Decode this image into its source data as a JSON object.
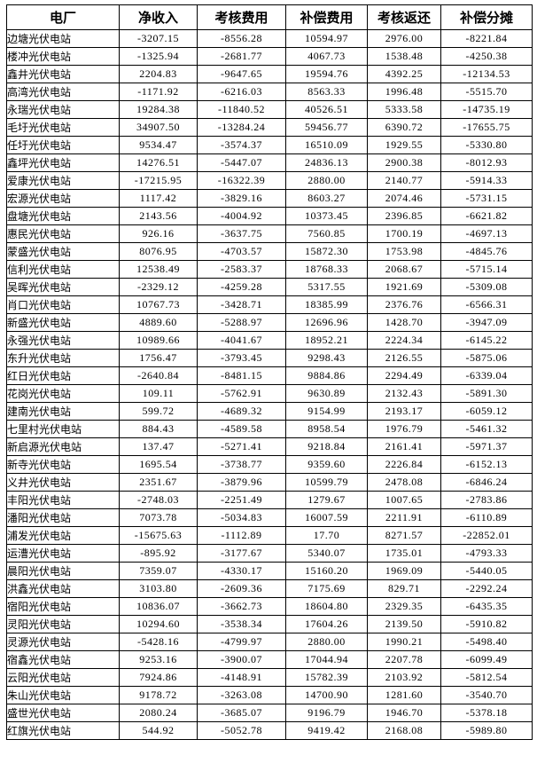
{
  "table": {
    "columns": [
      "电厂",
      "净收入",
      "考核费用",
      "补偿费用",
      "考核返还",
      "补偿分摊"
    ],
    "rows": [
      [
        "边塘光伏电站",
        "-3207.15",
        "-8556.28",
        "10594.97",
        "2976.00",
        "-8221.84"
      ],
      [
        "楼冲光伏电站",
        "-1325.94",
        "-2681.77",
        "4067.73",
        "1538.48",
        "-4250.38"
      ],
      [
        "鑫井光伏电站",
        "2204.83",
        "-9647.65",
        "19594.76",
        "4392.25",
        "-12134.53"
      ],
      [
        "高湾光伏电站",
        "-1171.92",
        "-6216.03",
        "8563.33",
        "1996.48",
        "-5515.70"
      ],
      [
        "永瑞光伏电站",
        "19284.38",
        "-11840.52",
        "40526.51",
        "5333.58",
        "-14735.19"
      ],
      [
        "毛圩光伏电站",
        "34907.50",
        "-13284.24",
        "59456.77",
        "6390.72",
        "-17655.75"
      ],
      [
        "任圩光伏电站",
        "9534.47",
        "-3574.37",
        "16510.09",
        "1929.55",
        "-5330.80"
      ],
      [
        "鑫坪光伏电站",
        "14276.51",
        "-5447.07",
        "24836.13",
        "2900.38",
        "-8012.93"
      ],
      [
        "爱康光伏电站",
        "-17215.95",
        "-16322.39",
        "2880.00",
        "2140.77",
        "-5914.33"
      ],
      [
        "宏源光伏电站",
        "1117.42",
        "-3829.16",
        "8603.27",
        "2074.46",
        "-5731.15"
      ],
      [
        "盘塘光伏电站",
        "2143.56",
        "-4004.92",
        "10373.45",
        "2396.85",
        "-6621.82"
      ],
      [
        "惠民光伏电站",
        "926.16",
        "-3637.75",
        "7560.85",
        "1700.19",
        "-4697.13"
      ],
      [
        "蒙盛光伏电站",
        "8076.95",
        "-4703.57",
        "15872.30",
        "1753.98",
        "-4845.76"
      ],
      [
        "信利光伏电站",
        "12538.49",
        "-2583.37",
        "18768.33",
        "2068.67",
        "-5715.14"
      ],
      [
        "吴晖光伏电站",
        "-2329.12",
        "-4259.28",
        "5317.55",
        "1921.69",
        "-5309.08"
      ],
      [
        "肖口光伏电站",
        "10767.73",
        "-3428.71",
        "18385.99",
        "2376.76",
        "-6566.31"
      ],
      [
        "新盛光伏电站",
        "4889.60",
        "-5288.97",
        "12696.96",
        "1428.70",
        "-3947.09"
      ],
      [
        "永强光伏电站",
        "10989.66",
        "-4041.67",
        "18952.21",
        "2224.34",
        "-6145.22"
      ],
      [
        "东升光伏电站",
        "1756.47",
        "-3793.45",
        "9298.43",
        "2126.55",
        "-5875.06"
      ],
      [
        "红日光伏电站",
        "-2640.84",
        "-8481.15",
        "9884.86",
        "2294.49",
        "-6339.04"
      ],
      [
        "花岗光伏电站",
        "109.11",
        "-5762.91",
        "9630.89",
        "2132.43",
        "-5891.30"
      ],
      [
        "建南光伏电站",
        "599.72",
        "-4689.32",
        "9154.99",
        "2193.17",
        "-6059.12"
      ],
      [
        "七里村光伏电站",
        "884.43",
        "-4589.58",
        "8958.54",
        "1976.79",
        "-5461.32"
      ],
      [
        "新启源光伏电站",
        "137.47",
        "-5271.41",
        "9218.84",
        "2161.41",
        "-5971.37"
      ],
      [
        "新寺光伏电站",
        "1695.54",
        "-3738.77",
        "9359.60",
        "2226.84",
        "-6152.13"
      ],
      [
        "义井光伏电站",
        "2351.67",
        "-3879.96",
        "10599.79",
        "2478.08",
        "-6846.24"
      ],
      [
        "丰阳光伏电站",
        "-2748.03",
        "-2251.49",
        "1279.67",
        "1007.65",
        "-2783.86"
      ],
      [
        "潘阳光伏电站",
        "7073.78",
        "-5034.83",
        "16007.59",
        "2211.91",
        "-6110.89"
      ],
      [
        "浦发光伏电站",
        "-15675.63",
        "-1112.89",
        "17.70",
        "8271.57",
        "-22852.01"
      ],
      [
        "运漕光伏电站",
        "-895.92",
        "-3177.67",
        "5340.07",
        "1735.01",
        "-4793.33"
      ],
      [
        "晨阳光伏电站",
        "7359.07",
        "-4330.17",
        "15160.20",
        "1969.09",
        "-5440.05"
      ],
      [
        "洪鑫光伏电站",
        "3103.80",
        "-2609.36",
        "7175.69",
        "829.71",
        "-2292.24"
      ],
      [
        "宿阳光伏电站",
        "10836.07",
        "-3662.73",
        "18604.80",
        "2329.35",
        "-6435.35"
      ],
      [
        "灵阳光伏电站",
        "10294.60",
        "-3538.34",
        "17604.26",
        "2139.50",
        "-5910.82"
      ],
      [
        "灵源光伏电站",
        "-5428.16",
        "-4799.97",
        "2880.00",
        "1990.21",
        "-5498.40"
      ],
      [
        "宿鑫光伏电站",
        "9253.16",
        "-3900.07",
        "17044.94",
        "2207.78",
        "-6099.49"
      ],
      [
        "云阳光伏电站",
        "7924.86",
        "-4148.91",
        "15782.39",
        "2103.92",
        "-5812.54"
      ],
      [
        "朱山光伏电站",
        "9178.72",
        "-3263.08",
        "14700.90",
        "1281.60",
        "-3540.70"
      ],
      [
        "盛世光伏电站",
        "2080.24",
        "-3685.07",
        "9196.79",
        "1946.70",
        "-5378.18"
      ],
      [
        "红旗光伏电站",
        "544.92",
        "-5052.78",
        "9419.42",
        "2168.08",
        "-5989.80"
      ]
    ]
  },
  "colors": {
    "border": "#000000",
    "background": "#ffffff",
    "text": "#000000"
  }
}
